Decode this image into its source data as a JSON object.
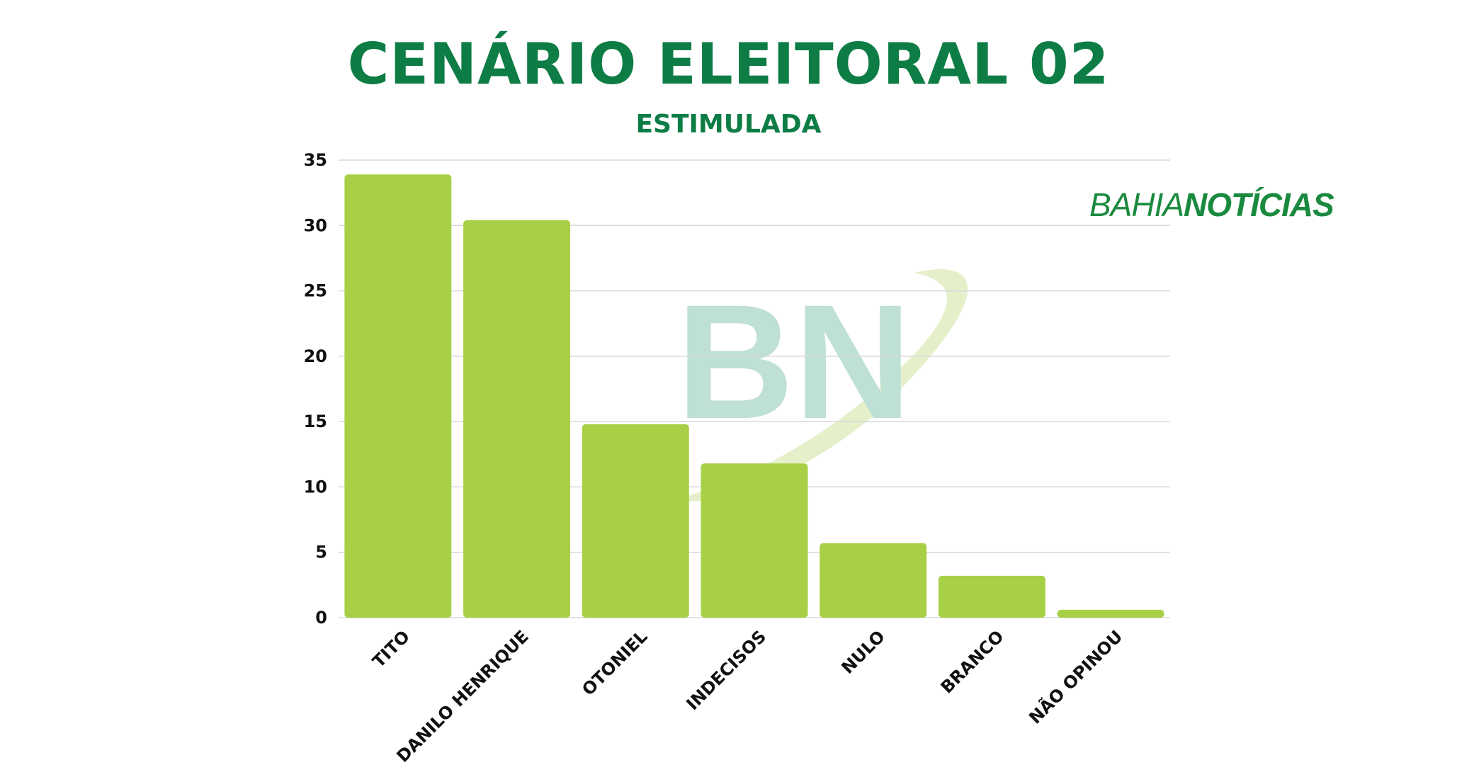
{
  "title": "CENÁRIO ELEITORAL 02",
  "subtitle": "ESTIMULADA",
  "brand": {
    "part1": "BAHIA",
    "part2": "NOTÍCIAS"
  },
  "watermark": {
    "text": "BN"
  },
  "colors": {
    "title": "#0d7d45",
    "bar": "#a8d046",
    "grid": "#d9d9d9",
    "watermark": "#b9ddd0"
  },
  "chart_data": {
    "type": "bar",
    "title": "CENÁRIO ELEITORAL 02",
    "subtitle": "ESTIMULADA",
    "categories": [
      "TITO",
      "DANILO HENRIQUE",
      "OTONIEL",
      "INDECISOS",
      "NULO",
      "BRANCO",
      "NÃO OPINOU"
    ],
    "values": [
      33.9,
      30.4,
      14.8,
      11.8,
      5.7,
      3.2,
      0.6
    ],
    "ylim": [
      0,
      35
    ],
    "yticks": [
      0,
      5,
      10,
      15,
      20,
      25,
      30,
      35
    ],
    "grid": true,
    "xlabel": "",
    "ylabel": ""
  }
}
